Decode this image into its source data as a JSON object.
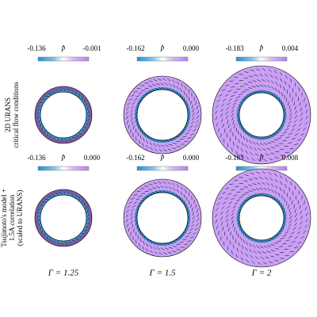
{
  "rows": [
    {
      "label": [
        "2D URANS",
        "critical flow conditions"
      ]
    },
    {
      "label": [
        "Tsujimoto's model +",
        "1.5A correlation",
        "(scaled to URANS)"
      ]
    }
  ],
  "panels": [
    [
      {
        "min": "-0.136",
        "symbol": "p̂",
        "max": "-0.001"
      },
      {
        "min": "-0.162",
        "symbol": "p̂",
        "max": "0.000"
      },
      {
        "min": "-0.183",
        "symbol": "p̂",
        "max": "0.004"
      }
    ],
    [
      {
        "min": "-0.136",
        "symbol": "p̂",
        "max": "0.000"
      },
      {
        "min": "-0.162",
        "symbol": "p̂",
        "max": "0.000"
      },
      {
        "min": "-0.183",
        "symbol": "p̂",
        "max": "0.008"
      }
    ]
  ],
  "columns": [
    "Γ = 1.25",
    "Γ = 1.5",
    "Γ = 2"
  ]
}
